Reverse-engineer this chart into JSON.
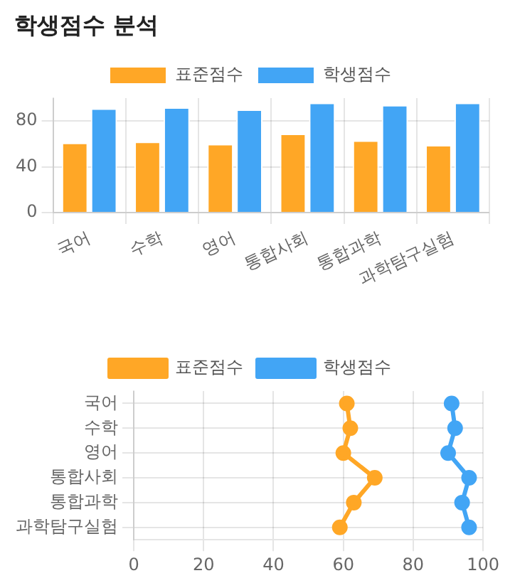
{
  "chart_data": [
    {
      "type": "bar",
      "title": "학생점수 분석",
      "categories": [
        "국어",
        "수학",
        "영어",
        "통합사회",
        "통합과학",
        "과학탐구실험"
      ],
      "series": [
        {
          "name": "표준점수",
          "color": "#ffa726",
          "values": [
            61,
            62,
            60,
            69,
            63,
            59
          ]
        },
        {
          "name": "학생점수",
          "color": "#42a5f5",
          "values": [
            91,
            92,
            90,
            96,
            94,
            96
          ]
        }
      ],
      "ylim": [
        0,
        100
      ],
      "yticks": [
        0,
        40,
        80
      ],
      "grid": true,
      "legend": "top"
    },
    {
      "type": "line",
      "orientation": "horizontal",
      "categories": [
        "국어",
        "수학",
        "영어",
        "통합사회",
        "통합과학",
        "과학탐구실험"
      ],
      "series": [
        {
          "name": "표준점수",
          "color": "#ffa726",
          "values": [
            61,
            62,
            60,
            69,
            63,
            59
          ]
        },
        {
          "name": "학생점수",
          "color": "#42a5f5",
          "values": [
            91,
            92,
            90,
            96,
            94,
            96
          ]
        }
      ],
      "xlim": [
        0,
        100
      ],
      "xticks": [
        0,
        20,
        40,
        60,
        80,
        100
      ],
      "grid": true,
      "legend": "top",
      "marker": "circle"
    }
  ]
}
